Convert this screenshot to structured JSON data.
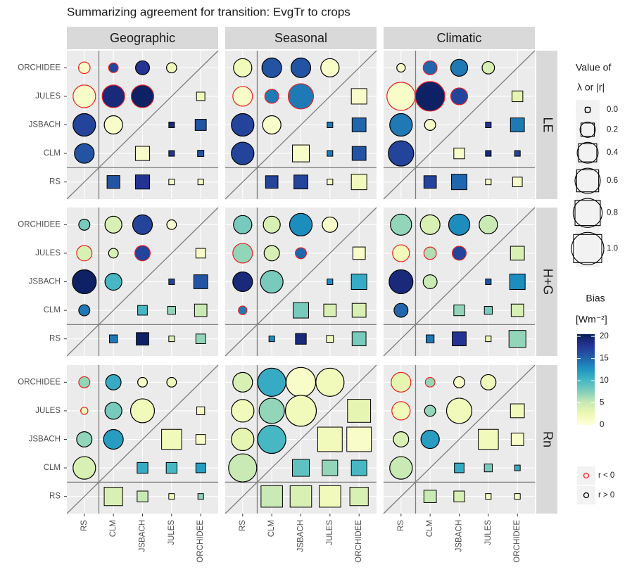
{
  "chart_data": {
    "type": "agreement-matrix",
    "title": "Summarizing agreement for transition: EvgTr to crops",
    "columns": [
      "Geographic",
      "Seasonal",
      "Climatic"
    ],
    "rows": [
      "LE",
      "H+G",
      "Rn"
    ],
    "categories": [
      "RS",
      "CLM",
      "JSBACH",
      "JULES",
      "ORCHIDEE"
    ],
    "circle_x": [
      "RS",
      "CLM",
      "JSBACH",
      "JULES",
      "RS",
      "CLM",
      "JSBACH",
      "RS",
      "CLM",
      "RS"
    ],
    "circle_y": [
      "ORCHIDEE",
      "ORCHIDEE",
      "ORCHIDEE",
      "ORCHIDEE",
      "JULES",
      "JULES",
      "JULES",
      "JSBACH",
      "JSBACH",
      "CLM"
    ],
    "square_x": [
      "ORCHIDEE",
      "JULES",
      "ORCHIDEE",
      "JSBACH",
      "JULES",
      "ORCHIDEE",
      "CLM",
      "JSBACH",
      "JULES",
      "ORCHIDEE"
    ],
    "square_y": [
      "JULES",
      "JSBACH",
      "JSBACH",
      "CLM",
      "CLM",
      "CLM",
      "RS",
      "RS",
      "RS",
      "RS"
    ],
    "facets": [
      {
        "column": "Geographic",
        "row": "LE",
        "r": [
          -0.1,
          -0.06,
          0.16,
          0.07,
          -0.47,
          -0.47,
          -0.47,
          0.47,
          0.3,
          0.35
        ],
        "circle_bias": [
          1,
          17,
          18,
          2,
          1,
          19,
          20,
          17,
          1,
          16
        ],
        "lambda": [
          0.06,
          0.01,
          0.13,
          0.23,
          0.01,
          0.02,
          0.18,
          0.23,
          0.01,
          0.01
        ],
        "square_bias": [
          2,
          19,
          16,
          1,
          18,
          16,
          16,
          18,
          1,
          1
        ]
      },
      {
        "column": "Seasonal",
        "row": "LE",
        "r": [
          0.3,
          0.35,
          0.35,
          0.3,
          -0.35,
          -0.16,
          -0.6,
          0.47,
          0.3,
          0.47
        ],
        "circle_bias": [
          2,
          16,
          16,
          1,
          1,
          14,
          14,
          17,
          1,
          17
        ],
        "lambda": [
          0.28,
          0.01,
          0.22,
          0.34,
          0.01,
          0.22,
          0.17,
          0.22,
          0.01,
          0.28
        ],
        "square_bias": [
          1,
          14,
          15,
          1,
          14,
          16,
          17,
          17,
          1,
          2
        ]
      },
      {
        "column": "Climatic",
        "row": "LE",
        "r": [
          0.04,
          -0.16,
          0.25,
          0.12,
          -0.75,
          -0.83,
          -0.25,
          0.47,
          0.09,
          0.6
        ],
        "circle_bias": [
          1,
          15,
          14,
          4,
          1,
          20,
          17,
          14,
          1,
          17
        ],
        "lambda": [
          0.12,
          0.01,
          0.22,
          0.12,
          0.01,
          0.01,
          0.17,
          0.28,
          0.01,
          0.09
        ],
        "square_bias": [
          3,
          18,
          14,
          1,
          19,
          17,
          17,
          15,
          1,
          1
        ]
      },
      {
        "column": "Geographic",
        "row": "H+G",
        "r": [
          0.09,
          0.25,
          0.35,
          0.06,
          -0.2,
          0.06,
          -0.2,
          0.53,
          0.25,
          0.09
        ],
        "circle_bias": [
          8,
          4,
          17,
          1,
          4,
          4,
          17,
          20,
          10,
          14
        ],
        "lambda": [
          0.09,
          0.01,
          0.22,
          0.09,
          0.05,
          0.17,
          0.05,
          0.17,
          0.01,
          0.09
        ],
        "square_bias": [
          1,
          17,
          16,
          10,
          7,
          5,
          14,
          20,
          4,
          7
        ]
      },
      {
        "column": "Seasonal",
        "row": "H+G",
        "r": [
          0.3,
          0.25,
          0.47,
          0.2,
          -0.35,
          0.2,
          -0.09,
          0.35,
          0.47,
          -0.04
        ],
        "circle_bias": [
          8,
          4,
          13,
          1,
          7,
          4,
          15,
          19,
          8,
          14
        ],
        "lambda": [
          0.17,
          0.01,
          0.28,
          0.28,
          0.17,
          0.22,
          0.01,
          0.12,
          0.03,
          0.22
        ],
        "square_bias": [
          1,
          13,
          11,
          8,
          4,
          4,
          13,
          19,
          2,
          8
        ]
      },
      {
        "column": "Climatic",
        "row": "H+G",
        "r": [
          0.41,
          0.35,
          0.41,
          0.3,
          -0.25,
          -0.12,
          -0.16,
          0.53,
          0.16,
          0.16
        ],
        "circle_bias": [
          7,
          4,
          13,
          5,
          2,
          6,
          17,
          19,
          5,
          15
        ],
        "lambda": [
          0.22,
          0.01,
          0.28,
          0.12,
          0.05,
          0.17,
          0.05,
          0.22,
          0.01,
          0.34
        ],
        "square_bias": [
          4,
          16,
          13,
          7,
          8,
          4,
          14,
          18,
          2,
          7
        ]
      },
      {
        "column": "Geographic",
        "row": "Rn",
        "r": [
          -0.09,
          0.2,
          0.06,
          0.06,
          -0.02,
          0.25,
          0.53,
          0.2,
          0.35,
          0.47
        ],
        "circle_bias": [
          7,
          11,
          1,
          2,
          2,
          8,
          2,
          7,
          12,
          4
        ],
        "lambda": [
          0.05,
          0.49,
          0.09,
          0.12,
          0.12,
          0.09,
          0.41,
          0.12,
          0.01,
          0.01
        ],
        "square_bias": [
          1,
          2,
          1,
          11,
          10,
          12,
          4,
          5,
          2,
          7
        ]
      },
      {
        "column": "Seasonal",
        "row": "Rn",
        "r": [
          0.35,
          0.75,
          0.83,
          0.75,
          0.47,
          0.6,
          0.91,
          0.47,
          0.75,
          0.75
        ],
        "circle_bias": [
          4,
          11,
          1,
          2,
          2,
          7,
          2,
          3,
          10,
          5
        ],
        "lambda": [
          0.66,
          0.75,
          0.75,
          0.34,
          0.28,
          0.28,
          0.57,
          0.57,
          0.57,
          0.41
        ],
        "square_bias": [
          3,
          2,
          1,
          9,
          7,
          10,
          5,
          4,
          2,
          4
        ]
      },
      {
        "column": "Climatic",
        "row": "Rn",
        "r": [
          -0.35,
          -0.06,
          0.09,
          0.2,
          -0.3,
          0.09,
          0.6,
          0.2,
          0.3,
          0.47
        ],
        "circle_bias": [
          3,
          7,
          1,
          2,
          2,
          7,
          2,
          4,
          12,
          5
        ],
        "lambda": [
          0.22,
          0.49,
          0.17,
          0.09,
          0.05,
          0.01,
          0.17,
          0.12,
          0.01,
          0.01
        ],
        "square_bias": [
          2,
          2,
          1,
          11,
          8,
          11,
          5,
          4,
          1,
          1
        ]
      }
    ],
    "size_legend_title": [
      "Value of",
      "λ or |r|"
    ],
    "size_legend_values": [
      {
        "value": 0,
        "label": "0.0"
      },
      0.2,
      0.4,
      0.6,
      0.8,
      {
        "value": 1,
        "label": "1.0"
      }
    ],
    "colorbar_title": [
      "Bias",
      "[Wm⁻²]"
    ],
    "colorbar_lim": [
      0,
      20.5
    ],
    "colorbar_ticks": [
      0,
      5,
      10,
      15,
      20
    ],
    "colorscale": [
      "#ffffd9",
      "#edf8b1",
      "#c7e9b4",
      "#7fcdbb",
      "#41b6c4",
      "#1d91c0",
      "#225ea8",
      "#253494",
      "#081d58"
    ],
    "sign_legend": [
      {
        "label": "r < 0",
        "color": "#e8211f"
      },
      {
        "label": "r > 0",
        "color": "#000000"
      }
    ]
  }
}
